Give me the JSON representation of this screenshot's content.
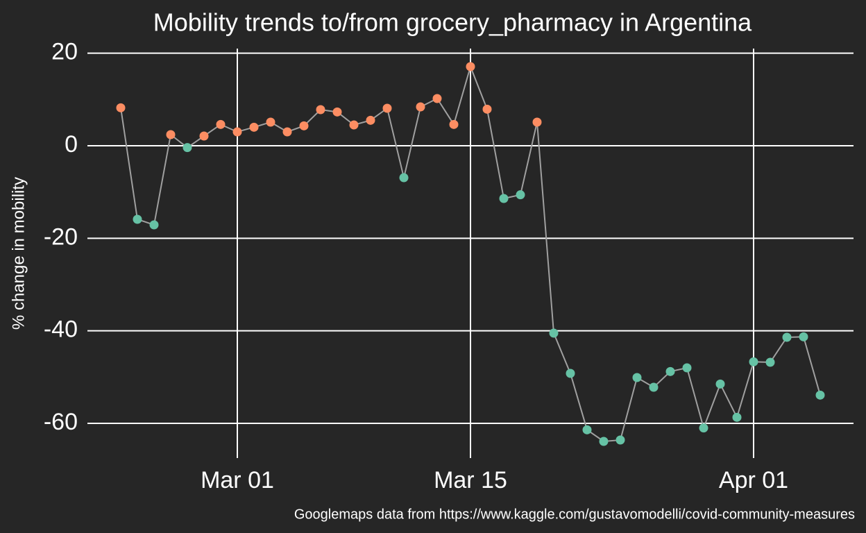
{
  "chart_data": {
    "type": "line",
    "title": "Mobility trends to/from grocery_pharmacy in Argentina",
    "y_label": "% change in mobility",
    "caption": "Googlemaps data from https://www.kaggle.com/gustavomodelli/covid-community-measures",
    "x": [
      "Feb 23",
      "Feb 24",
      "Feb 25",
      "Feb 26",
      "Feb 27",
      "Feb 28",
      "Feb 29",
      "Mar 01",
      "Mar 02",
      "Mar 03",
      "Mar 04",
      "Mar 05",
      "Mar 06",
      "Mar 07",
      "Mar 08",
      "Mar 09",
      "Mar 10",
      "Mar 11",
      "Mar 12",
      "Mar 13",
      "Mar 14",
      "Mar 15",
      "Mar 16",
      "Mar 17",
      "Mar 18",
      "Mar 19",
      "Mar 20",
      "Mar 21",
      "Mar 22",
      "Mar 23",
      "Mar 24",
      "Mar 25",
      "Mar 26",
      "Mar 27",
      "Mar 28",
      "Mar 29",
      "Mar 30",
      "Mar 31",
      "Apr 01",
      "Apr 02",
      "Apr 03",
      "Apr 04",
      "Apr 05"
    ],
    "series": [
      {
        "color": "#a0a0a0",
        "values": [
          8.2,
          -15.9,
          -17.1,
          2.4,
          -0.4,
          2.1,
          4.6,
          3.0,
          4.0,
          5.1,
          3.0,
          4.3,
          7.8,
          7.3,
          4.5,
          5.5,
          8.1,
          -6.9,
          8.4,
          10.2,
          4.6,
          17.1,
          7.9,
          -11.4,
          -10.6,
          5.1,
          -40.5,
          -49.2,
          -61.4,
          -63.9,
          -63.6,
          -50.1,
          -52.2,
          -48.8,
          -48.0,
          -61.0,
          -51.5,
          -58.7,
          -46.7,
          -46.8,
          -41.4,
          -41.3,
          -53.9
        ]
      }
    ],
    "positive_color": "#fc8d62",
    "negative_color": "#66c2a5",
    "xlim": [
      "Feb 21",
      "Apr 07"
    ],
    "xticks": [
      "Mar 01",
      "Mar 15",
      "Apr 01"
    ],
    "ylim": [
      -67.5,
      22.8
    ],
    "yticks": [
      -60,
      -40,
      -20,
      0,
      20
    ],
    "grid": true
  }
}
